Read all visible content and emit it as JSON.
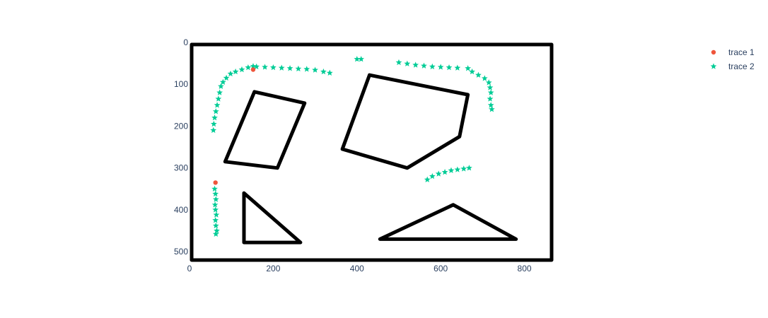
{
  "chart_data": {
    "type": "scatter",
    "xlim": [
      0,
      870
    ],
    "ylim": [
      520,
      0
    ],
    "x_ticks": [
      0,
      200,
      400,
      600,
      800
    ],
    "y_ticks": [
      0,
      100,
      200,
      300,
      400,
      500
    ],
    "x_tick_labels": [
      "0",
      "200",
      "400",
      "600",
      "800"
    ],
    "y_tick_labels": [
      "0",
      "100",
      "200",
      "300",
      "400",
      "500"
    ],
    "grid": false,
    "legend_position": "top-right",
    "background_shapes": [
      {
        "name": "border-rectangle",
        "points": [
          [
            5,
            5
          ],
          [
            865,
            5
          ],
          [
            865,
            520
          ],
          [
            5,
            520
          ]
        ]
      },
      {
        "name": "parallelogram",
        "points": [
          [
            155,
            118
          ],
          [
            275,
            145
          ],
          [
            210,
            300
          ],
          [
            85,
            285
          ]
        ]
      },
      {
        "name": "pentagon",
        "points": [
          [
            430,
            78
          ],
          [
            665,
            125
          ],
          [
            645,
            225
          ],
          [
            520,
            300
          ],
          [
            365,
            255
          ]
        ]
      },
      {
        "name": "left-triangle",
        "points": [
          [
            130,
            360
          ],
          [
            265,
            478
          ],
          [
            130,
            478
          ]
        ]
      },
      {
        "name": "right-triangle",
        "points": [
          [
            455,
            470
          ],
          [
            630,
            388
          ],
          [
            780,
            470
          ]
        ]
      }
    ],
    "series": [
      {
        "name": "trace 1",
        "marker": "circle",
        "color": "#EF553B",
        "points": [
          [
            152,
            65
          ],
          [
            62,
            335
          ]
        ]
      },
      {
        "name": "trace 2",
        "marker": "star",
        "color": "#00CC96",
        "points": [
          [
            57,
            210
          ],
          [
            58,
            195
          ],
          [
            60,
            180
          ],
          [
            63,
            165
          ],
          [
            66,
            150
          ],
          [
            69,
            135
          ],
          [
            72,
            120
          ],
          [
            75,
            105
          ],
          [
            80,
            95
          ],
          [
            88,
            85
          ],
          [
            98,
            75
          ],
          [
            110,
            70
          ],
          [
            125,
            65
          ],
          [
            140,
            60
          ],
          [
            152,
            57
          ],
          [
            160,
            58
          ],
          [
            180,
            59
          ],
          [
            200,
            60
          ],
          [
            220,
            61
          ],
          [
            240,
            62
          ],
          [
            260,
            63
          ],
          [
            280,
            64
          ],
          [
            300,
            66
          ],
          [
            320,
            70
          ],
          [
            335,
            73
          ],
          [
            400,
            40
          ],
          [
            410,
            40
          ],
          [
            500,
            48
          ],
          [
            520,
            51
          ],
          [
            540,
            54
          ],
          [
            560,
            56
          ],
          [
            580,
            58
          ],
          [
            600,
            59
          ],
          [
            620,
            60
          ],
          [
            640,
            61
          ],
          [
            665,
            62
          ],
          [
            675,
            70
          ],
          [
            690,
            78
          ],
          [
            705,
            86
          ],
          [
            715,
            96
          ],
          [
            718,
            108
          ],
          [
            720,
            120
          ],
          [
            718,
            135
          ],
          [
            720,
            150
          ],
          [
            722,
            160
          ],
          [
            568,
            328
          ],
          [
            580,
            320
          ],
          [
            595,
            314
          ],
          [
            610,
            310
          ],
          [
            625,
            306
          ],
          [
            640,
            304
          ],
          [
            655,
            302
          ],
          [
            668,
            300
          ],
          [
            60,
            350
          ],
          [
            62,
            362
          ],
          [
            63,
            375
          ],
          [
            61,
            388
          ],
          [
            62,
            400
          ],
          [
            64,
            412
          ],
          [
            62,
            425
          ],
          [
            63,
            438
          ],
          [
            65,
            450
          ],
          [
            63,
            458
          ]
        ]
      }
    ]
  },
  "legend": {
    "items": [
      {
        "label": "trace 1",
        "marker": "circle",
        "color": "#EF553B"
      },
      {
        "label": "trace 2",
        "marker": "star",
        "color": "#00CC96"
      }
    ]
  }
}
